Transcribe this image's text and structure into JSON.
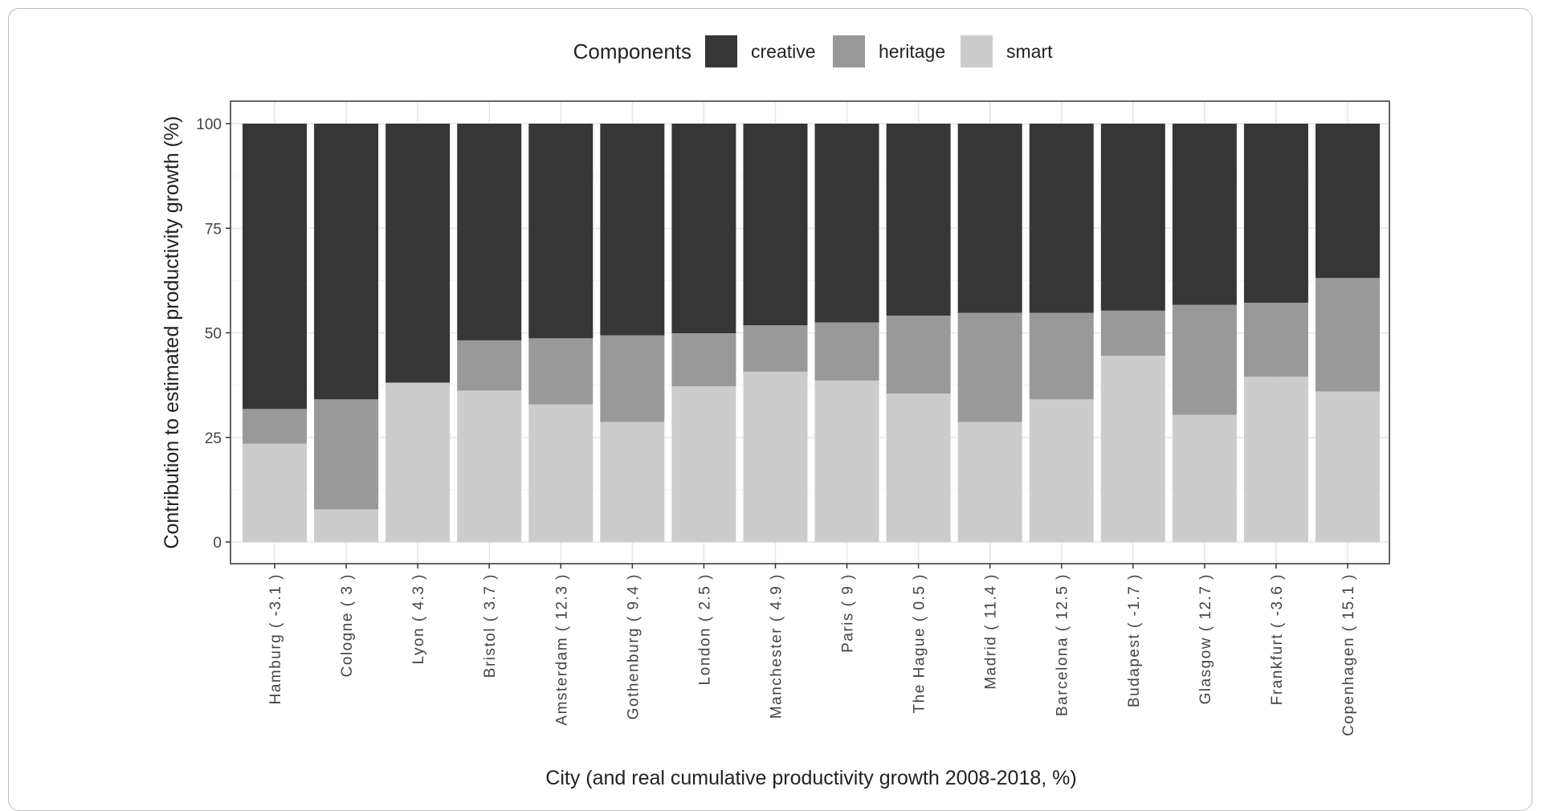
{
  "chart_data": {
    "type": "bar",
    "stacked": true,
    "xlabel": "City (and real cumulative productivity growth 2008-2018, %)",
    "ylabel": "Contribution to estimated productivity growth (%)",
    "ylim": [
      0,
      100
    ],
    "yticks": [
      0,
      25,
      50,
      75,
      100
    ],
    "grid": true,
    "legend": {
      "title": "Components",
      "placement": "top",
      "entries": [
        "creative",
        "heritage",
        "smart"
      ]
    },
    "colors": {
      "creative": "#363636",
      "heritage": "#999999",
      "smart": "#cccccc"
    },
    "categories": [
      "Hamburg ( -3.1 )",
      "Cologne ( 3 )",
      "Lyon ( 4.3 )",
      "Bristol ( 3.7 )",
      "Amsterdam ( 12.3 )",
      "Gothenburg ( 9.4 )",
      "London ( 2.5 )",
      "Manchester ( 4.9 )",
      "Paris ( 9 )",
      "The Hague ( 0.5 )",
      "Madrid ( 11.4 )",
      "Barcelona ( 12.5 )",
      "Budapest ( -1.7 )",
      "Glasgow ( 12.7 )",
      "Frankfurt ( -3.6 )",
      "Copenhagen ( 15.1 )"
    ],
    "series": [
      {
        "name": "smart",
        "values": [
          23.5,
          7.8,
          38.1,
          36.2,
          32.9,
          28.7,
          37.2,
          40.7,
          38.6,
          35.5,
          28.7,
          34.1,
          44.5,
          30.4,
          39.5,
          36.0
        ]
      },
      {
        "name": "heritage",
        "values": [
          8.3,
          26.3,
          0.0,
          12.0,
          15.8,
          20.7,
          12.7,
          11.1,
          13.9,
          18.6,
          26.1,
          20.7,
          10.8,
          26.3,
          17.7,
          27.1
        ]
      },
      {
        "name": "creative",
        "values": [
          68.2,
          65.9,
          61.9,
          51.8,
          51.3,
          50.6,
          50.1,
          48.2,
          47.5,
          45.9,
          45.2,
          45.2,
          44.7,
          43.3,
          42.8,
          36.9
        ]
      }
    ]
  }
}
